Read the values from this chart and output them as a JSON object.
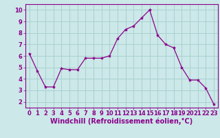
{
  "x": [
    0,
    1,
    2,
    3,
    4,
    5,
    6,
    7,
    8,
    9,
    10,
    11,
    12,
    13,
    14,
    15,
    16,
    17,
    18,
    19,
    20,
    21,
    22,
    23
  ],
  "y": [
    6.2,
    4.7,
    3.3,
    3.3,
    4.9,
    4.8,
    4.8,
    5.8,
    5.8,
    5.8,
    6.0,
    7.5,
    8.3,
    8.6,
    9.3,
    10.0,
    7.8,
    7.0,
    6.7,
    5.0,
    3.9,
    3.9,
    3.2,
    1.8
  ],
  "line_color": "#8b008b",
  "marker": "*",
  "marker_size": 3,
  "bg_color": "#cce8e8",
  "grid_color": "#a8d0d0",
  "xlabel": "Windchill (Refroidissement éolien,°C)",
  "xlabel_color": "#8b008b",
  "xlabel_fontsize": 7,
  "tick_color": "#8b008b",
  "tick_fontsize": 6,
  "xlim": [
    -0.5,
    23.5
  ],
  "ylim": [
    1.5,
    10.5
  ],
  "yticks": [
    2,
    3,
    4,
    5,
    6,
    7,
    8,
    9,
    10
  ],
  "xticks": [
    0,
    1,
    2,
    3,
    4,
    5,
    6,
    7,
    8,
    9,
    10,
    11,
    12,
    13,
    14,
    15,
    16,
    17,
    18,
    19,
    20,
    21,
    22,
    23
  ]
}
